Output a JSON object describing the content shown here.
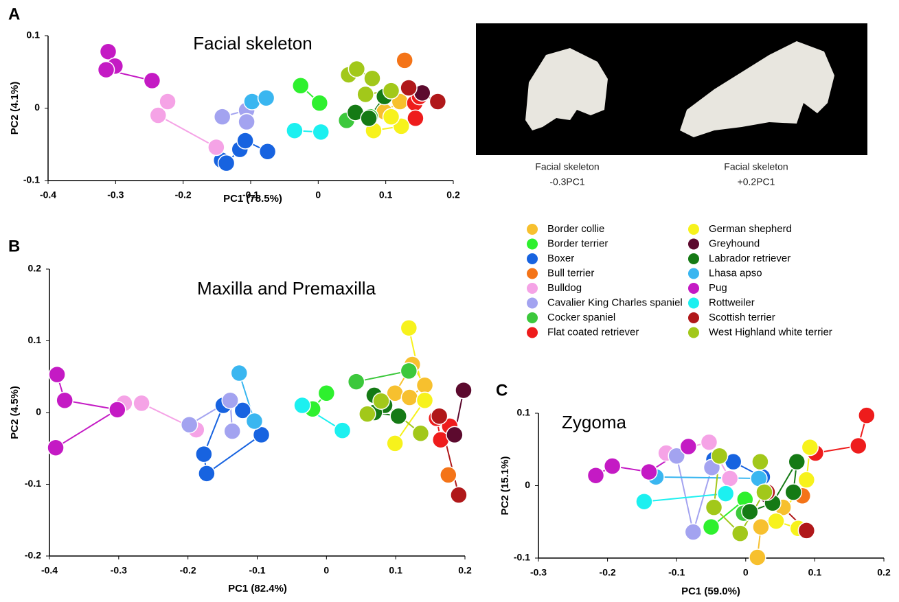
{
  "chart_data": [
    {
      "type": "scatter",
      "panel_label": "A",
      "title": "Facial skeleton",
      "xlabel": "PC1 (78.5%)",
      "ylabel": "PC2 (4.1%)",
      "xlim": [
        -0.4,
        0.2
      ],
      "ylim": [
        -0.1,
        0.1
      ],
      "xticks": [
        -0.4,
        -0.3,
        -0.2,
        -0.1,
        0,
        0.1,
        0.2
      ],
      "yticks": [
        -0.1,
        0,
        0.1
      ],
      "series": [
        {
          "name": "Border collie",
          "color": "#f7c02e",
          "x": [
            0.098,
            0.121
          ],
          "values": [
            -0.005,
            0.009
          ]
        },
        {
          "name": "Border terrier",
          "color": "#2ef02e",
          "x": [
            -0.026,
            0.002
          ],
          "values": [
            0.031,
            0.007
          ]
        },
        {
          "name": "Boxer",
          "color": "#1763e0",
          "x": [
            -0.143,
            -0.136,
            -0.116,
            -0.108,
            -0.075
          ],
          "values": [
            -0.072,
            -0.076,
            -0.057,
            -0.045,
            -0.06
          ]
        },
        {
          "name": "Bull terrier",
          "color": "#f47418",
          "x": [
            0.128
          ],
          "values": [
            0.066
          ]
        },
        {
          "name": "Bulldog",
          "color": "#f5a3e6",
          "x": [
            -0.223,
            -0.237,
            -0.151
          ],
          "values": [
            0.009,
            -0.01,
            -0.054
          ]
        },
        {
          "name": "Cavalier King Charles spaniel",
          "color": "#a3a3f0",
          "x": [
            -0.142,
            -0.106,
            -0.106
          ],
          "values": [
            -0.012,
            -0.003,
            -0.019
          ]
        },
        {
          "name": "Cocker spaniel",
          "color": "#3cc83c",
          "x": [
            0.042,
            0.077
          ],
          "values": [
            -0.017,
            -0.012
          ]
        },
        {
          "name": "Flat coated retriever",
          "color": "#ee1c1c",
          "x": [
            0.143,
            0.144,
            0.15
          ],
          "values": [
            0.007,
            -0.014,
            0.016
          ]
        },
        {
          "name": "German shepherd",
          "color": "#f7f21c",
          "x": [
            0.082,
            0.123,
            0.108
          ],
          "values": [
            -0.031,
            -0.025,
            -0.012
          ]
        },
        {
          "name": "Greyhound",
          "color": "#5c0a2e",
          "x": [
            0.154
          ],
          "values": [
            0.021
          ]
        },
        {
          "name": "Labrador retriever",
          "color": "#157a15",
          "x": [
            0.055,
            0.075,
            0.098
          ],
          "values": [
            -0.006,
            -0.014,
            0.016
          ]
        },
        {
          "name": "Lhasa apso",
          "color": "#3ab6f0",
          "x": [
            -0.098,
            -0.077
          ],
          "values": [
            0.009,
            0.014
          ]
        },
        {
          "name": "Pug",
          "color": "#c41ac4",
          "x": [
            -0.311,
            -0.301,
            -0.314,
            -0.246
          ],
          "values": [
            0.078,
            0.058,
            0.053,
            0.038
          ]
        },
        {
          "name": "Rottweiler",
          "color": "#1cf0f0",
          "x": [
            -0.035,
            0.004
          ],
          "values": [
            -0.031,
            -0.033
          ]
        },
        {
          "name": "Scottish terrier",
          "color": "#b0181a",
          "x": [
            0.134,
            0.177
          ],
          "values": [
            0.028,
            0.009
          ]
        },
        {
          "name": "West Highland white terrier",
          "color": "#a2c81a",
          "x": [
            0.045,
            0.057,
            0.08,
            0.07,
            0.108
          ],
          "values": [
            0.046,
            0.054,
            0.041,
            0.019,
            0.024
          ]
        }
      ]
    },
    {
      "type": "scatter",
      "panel_label": "B",
      "title": "Maxilla and Premaxilla",
      "xlabel": "PC1 (82.4%)",
      "ylabel": "PC2 (4.5%)",
      "xlim": [
        -0.4,
        0.2
      ],
      "ylim": [
        -0.2,
        0.2
      ],
      "xticks": [
        -0.4,
        -0.3,
        -0.2,
        -0.1,
        0,
        0.1,
        0.2
      ],
      "yticks": [
        -0.2,
        -0.1,
        0,
        0.1,
        0.2
      ],
      "series": [
        {
          "color": "#f7c02e",
          "x": [
            0.099,
            0.124,
            0.142,
            0.12
          ],
          "values": [
            0.027,
            0.067,
            0.038,
            0.021
          ]
        },
        {
          "color": "#2ef02e",
          "x": [
            0,
            -0.02
          ],
          "values": [
            0.027,
            0.005
          ]
        },
        {
          "color": "#1763e0",
          "x": [
            -0.149,
            -0.177,
            -0.173,
            -0.094,
            -0.121
          ],
          "values": [
            0.01,
            -0.058,
            -0.085,
            -0.031,
            0.003
          ]
        },
        {
          "color": "#f47418",
          "x": [
            0.176
          ],
          "values": [
            -0.087
          ]
        },
        {
          "color": "#f5a3e6",
          "x": [
            -0.292,
            -0.267,
            -0.188
          ],
          "values": [
            0.013,
            0.013,
            -0.024
          ]
        },
        {
          "color": "#a3a3f0",
          "x": [
            -0.198,
            -0.139,
            -0.136
          ],
          "values": [
            -0.017,
            0.017,
            -0.026
          ]
        },
        {
          "color": "#3cc83c",
          "x": [
            0.043,
            0.119
          ],
          "values": [
            0.043,
            0.058
          ]
        },
        {
          "color": "#ee1c1c",
          "x": [
            0.159,
            0.165,
            0.178
          ],
          "values": [
            -0.008,
            -0.038,
            -0.019
          ]
        },
        {
          "color": "#f7f21c",
          "x": [
            0.119,
            0.142,
            0.099
          ],
          "values": [
            0.118,
            0.017,
            -0.043
          ]
        },
        {
          "color": "#5c0a2e",
          "x": [
            0.198,
            0.185
          ],
          "values": [
            0.031,
            -0.031
          ]
        },
        {
          "color": "#157a15",
          "x": [
            0.069,
            0.084,
            0.104,
            0.069
          ],
          "values": [
            0.024,
            0.01,
            -0.005,
            0
          ]
        },
        {
          "color": "#3ab6f0",
          "x": [
            -0.126,
            -0.104
          ],
          "values": [
            0.055,
            -0.012
          ]
        },
        {
          "color": "#c41ac4",
          "x": [
            -0.389,
            -0.378,
            -0.302,
            -0.391
          ],
          "values": [
            0.053,
            0.017,
            0.004,
            -0.049
          ]
        },
        {
          "color": "#1cf0f0",
          "x": [
            -0.035,
            0.023
          ],
          "values": [
            0.01,
            -0.025
          ]
        },
        {
          "color": "#b0181a",
          "x": [
            0.163,
            0.191
          ],
          "values": [
            -0.005,
            -0.115
          ]
        },
        {
          "color": "#a2c81a",
          "x": [
            0.059,
            0.079,
            0.136
          ],
          "values": [
            -0.002,
            0.016,
            -0.029
          ]
        }
      ]
    },
    {
      "type": "scatter",
      "panel_label": "C",
      "title": "Zygoma",
      "xlabel": "PC1 (59.0%)",
      "ylabel": "PC2 (15.1%)",
      "xlim": [
        -0.3,
        0.2
      ],
      "ylim": [
        -0.1,
        0.1
      ],
      "xticks": [
        -0.3,
        -0.2,
        -0.1,
        0,
        0.1,
        0.2
      ],
      "yticks": [
        -0.1,
        0,
        0.1
      ],
      "series": [
        {
          "color": "#f7c02e",
          "x": [
            0.017,
            0.022,
            0.054
          ],
          "values": [
            -0.099,
            -0.057,
            -0.03
          ]
        },
        {
          "color": "#2ef02e",
          "x": [
            -0.05,
            -0.001
          ],
          "values": [
            -0.057,
            -0.019
          ]
        },
        {
          "color": "#1763e0",
          "x": [
            -0.046,
            -0.018,
            0.024
          ],
          "values": [
            0.036,
            0.033,
            0.012
          ]
        },
        {
          "color": "#f47418",
          "x": [
            0.082
          ],
          "values": [
            -0.014
          ]
        },
        {
          "color": "#f5a3e6",
          "x": [
            -0.115,
            -0.053,
            -0.023
          ],
          "values": [
            0.045,
            0.06,
            0.01
          ]
        },
        {
          "color": "#a3a3f0",
          "x": [
            -0.1,
            -0.076,
            -0.049
          ],
          "values": [
            0.041,
            -0.064,
            0.025
          ]
        },
        {
          "color": "#3cc83c",
          "x": [
            -0.003
          ],
          "values": [
            -0.038
          ]
        },
        {
          "color": "#ee1c1c",
          "x": [
            0.101,
            0.163,
            0.175
          ],
          "values": [
            0.045,
            0.055,
            0.097
          ]
        },
        {
          "color": "#f7f21c",
          "x": [
            0.093,
            0.088,
            0.044,
            0.076
          ],
          "values": [
            0.053,
            0.008,
            -0.049,
            -0.059
          ]
        },
        {
          "color": "#5c0a2e",
          "x": [
            0.031
          ],
          "values": [
            -0.013
          ]
        },
        {
          "color": "#157a15",
          "x": [
            0.006,
            0.039,
            0.074,
            0.069
          ],
          "values": [
            -0.036,
            -0.024,
            0.033,
            -0.009
          ]
        },
        {
          "color": "#3ab6f0",
          "x": [
            -0.13,
            0.019
          ],
          "values": [
            0.012,
            0.01
          ]
        },
        {
          "color": "#c41ac4",
          "x": [
            -0.217,
            -0.193,
            -0.14,
            -0.083
          ],
          "values": [
            0.014,
            0.027,
            0.019,
            0.054
          ]
        },
        {
          "color": "#1cf0f0",
          "x": [
            -0.147,
            -0.029
          ],
          "values": [
            -0.022,
            -0.011
          ]
        },
        {
          "color": "#b0181a",
          "x": [
            0.031,
            0.088
          ],
          "values": [
            -0.009,
            -0.062
          ]
        },
        {
          "color": "#a2c81a",
          "x": [
            -0.038,
            -0.046,
            -0.008,
            0.027,
            0.021
          ],
          "values": [
            0.041,
            -0.03,
            -0.066,
            -0.009,
            0.033
          ]
        }
      ]
    }
  ],
  "image_panel": {
    "captions": [
      [
        "Facial skeleton",
        "-0.3PC1"
      ],
      [
        "Facial skeleton",
        "+0.2PC1"
      ]
    ]
  }
}
